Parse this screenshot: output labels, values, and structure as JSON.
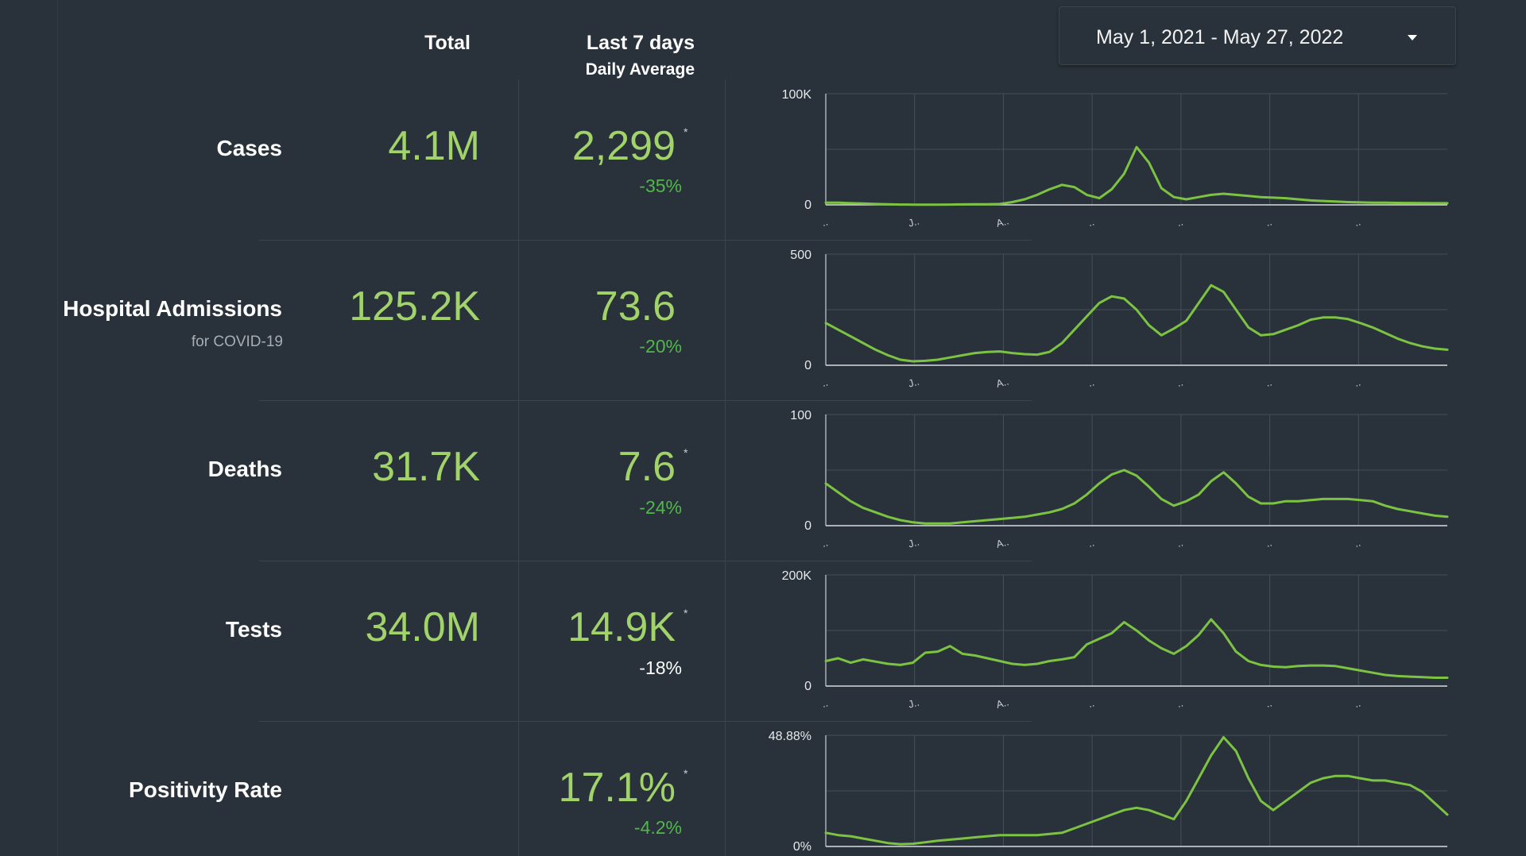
{
  "header": {
    "total": "Total",
    "last7": "Last 7 days",
    "daily_avg": "Daily Average"
  },
  "date_range": {
    "label": "May 1, 2021 - May 27, 2022",
    "icon": "caret-down-icon"
  },
  "colors": {
    "background": "#29323a",
    "value_green": "#a1d36a",
    "change_green": "#52b74a",
    "line_green": "#7cc243",
    "grid": "#454f58"
  },
  "rows": [
    {
      "label": "Cases",
      "sublabel": "",
      "total": "4.1M",
      "avg": "2,299",
      "asterisk": "*",
      "change": "-35%"
    },
    {
      "label": "Hospital Admissions",
      "sublabel": "for COVID-19",
      "total": "125.2K",
      "avg": "73.6",
      "asterisk": "",
      "change": "-20%"
    },
    {
      "label": "Deaths",
      "sublabel": "",
      "total": "31.7K",
      "avg": "7.6",
      "asterisk": "*",
      "change": "-24%"
    },
    {
      "label": "Tests",
      "sublabel": "",
      "total": "34.0M",
      "avg": "14.9K",
      "asterisk": "*",
      "change": "-18%"
    },
    {
      "label": "Positivity Rate",
      "sublabel": "",
      "total": "",
      "avg": "17.1%",
      "asterisk": "*",
      "change": "-4.2%"
    }
  ],
  "chart_data": [
    {
      "type": "line",
      "name": "Cases",
      "ylim": [
        0,
        100000
      ],
      "y_ticks": [
        "0",
        "100K"
      ],
      "x_tick_labels": [
        "..",
        "J..",
        "A..",
        "..",
        "..",
        "..",
        ".."
      ],
      "x": [
        0,
        2,
        4,
        6,
        8,
        10,
        12,
        14,
        16,
        18,
        20,
        22,
        24,
        26,
        28,
        30,
        32,
        34,
        36,
        38,
        40,
        42,
        44,
        46,
        48,
        50,
        52,
        54,
        56,
        58,
        60,
        62,
        64,
        66,
        68,
        70,
        72,
        74,
        76,
        78,
        80,
        82,
        84,
        86,
        88,
        90,
        92,
        94,
        96,
        98,
        100
      ],
      "values": [
        2000,
        2000,
        1500,
        1200,
        800,
        500,
        300,
        250,
        250,
        250,
        300,
        400,
        500,
        600,
        800,
        2500,
        5000,
        9000,
        14000,
        18000,
        16000,
        9000,
        6000,
        14000,
        28000,
        52000,
        38000,
        15000,
        7000,
        5000,
        7000,
        9000,
        10000,
        9000,
        8000,
        7000,
        6500,
        6000,
        5000,
        4000,
        3500,
        3000,
        2500,
        2200,
        2000,
        1900,
        1800,
        1700,
        1600,
        1500,
        1500
      ]
    },
    {
      "type": "line",
      "name": "Hospital Admissions",
      "ylim": [
        0,
        500
      ],
      "y_ticks": [
        "0",
        "500"
      ],
      "x_tick_labels": [
        "..",
        "J..",
        "A..",
        "..",
        "..",
        "..",
        ".."
      ],
      "x": [
        0,
        2,
        4,
        6,
        8,
        10,
        12,
        14,
        16,
        18,
        20,
        22,
        24,
        26,
        28,
        30,
        32,
        34,
        36,
        38,
        40,
        42,
        44,
        46,
        48,
        50,
        52,
        54,
        56,
        58,
        60,
        62,
        64,
        66,
        68,
        70,
        72,
        74,
        76,
        78,
        80,
        82,
        84,
        86,
        88,
        90,
        92,
        94,
        96,
        98,
        100
      ],
      "values": [
        190,
        160,
        130,
        100,
        70,
        45,
        25,
        18,
        20,
        25,
        35,
        45,
        55,
        60,
        62,
        55,
        50,
        48,
        60,
        100,
        160,
        220,
        280,
        310,
        300,
        250,
        180,
        135,
        165,
        200,
        280,
        360,
        330,
        250,
        170,
        135,
        140,
        160,
        180,
        205,
        215,
        215,
        208,
        190,
        170,
        145,
        120,
        100,
        85,
        75,
        70
      ]
    },
    {
      "type": "line",
      "name": "Deaths",
      "ylim": [
        0,
        100
      ],
      "y_ticks": [
        "0",
        "100"
      ],
      "x_tick_labels": [
        "..",
        "J..",
        "A..",
        "..",
        "..",
        "..",
        ".."
      ],
      "x": [
        0,
        2,
        4,
        6,
        8,
        10,
        12,
        14,
        16,
        18,
        20,
        22,
        24,
        26,
        28,
        30,
        32,
        34,
        36,
        38,
        40,
        42,
        44,
        46,
        48,
        50,
        52,
        54,
        56,
        58,
        60,
        62,
        64,
        66,
        68,
        70,
        72,
        74,
        76,
        78,
        80,
        82,
        84,
        86,
        88,
        90,
        92,
        94,
        96,
        98,
        100
      ],
      "values": [
        38,
        30,
        22,
        16,
        12,
        8,
        5,
        3,
        2,
        2,
        2,
        3,
        4,
        5,
        6,
        7,
        8,
        10,
        12,
        15,
        20,
        28,
        38,
        46,
        50,
        45,
        35,
        24,
        18,
        22,
        28,
        40,
        48,
        38,
        26,
        20,
        20,
        22,
        22,
        23,
        24,
        24,
        24,
        23,
        22,
        18,
        15,
        13,
        11,
        9,
        8
      ]
    },
    {
      "type": "line",
      "name": "Tests",
      "ylim": [
        0,
        200000
      ],
      "y_ticks": [
        "0",
        "200K"
      ],
      "x_tick_labels": [
        "..",
        "J..",
        "A..",
        "..",
        "..",
        "..",
        ".."
      ],
      "x": [
        0,
        2,
        4,
        6,
        8,
        10,
        12,
        14,
        16,
        18,
        20,
        22,
        24,
        26,
        28,
        30,
        32,
        34,
        36,
        38,
        40,
        42,
        44,
        46,
        48,
        50,
        52,
        54,
        56,
        58,
        60,
        62,
        64,
        66,
        68,
        70,
        72,
        74,
        76,
        78,
        80,
        82,
        84,
        86,
        88,
        90,
        92,
        94,
        96,
        98,
        100
      ],
      "values": [
        45000,
        50000,
        42000,
        48000,
        44000,
        40000,
        38000,
        42000,
        60000,
        62000,
        72000,
        58000,
        55000,
        50000,
        45000,
        40000,
        38000,
        40000,
        45000,
        48000,
        52000,
        75000,
        85000,
        95000,
        115000,
        100000,
        82000,
        68000,
        58000,
        72000,
        92000,
        120000,
        95000,
        62000,
        45000,
        38000,
        35000,
        34000,
        36000,
        37000,
        37000,
        36000,
        32000,
        28000,
        24000,
        20000,
        18000,
        17000,
        16000,
        15000,
        15000
      ]
    },
    {
      "type": "line",
      "name": "Positivity Rate",
      "ylim": [
        0,
        48.88
      ],
      "y_ticks": [
        "0%",
        "48.88%"
      ],
      "x": [
        0,
        2,
        4,
        6,
        8,
        10,
        12,
        14,
        16,
        18,
        20,
        22,
        24,
        26,
        28,
        30,
        32,
        34,
        36,
        38,
        40,
        42,
        44,
        46,
        48,
        50,
        52,
        54,
        56,
        58,
        60,
        62,
        64,
        66,
        68,
        70,
        72,
        74,
        76,
        78,
        80,
        82,
        84,
        86,
        88,
        90,
        92,
        94,
        96,
        98,
        100
      ],
      "values": [
        6,
        5,
        4.5,
        3.5,
        2.5,
        1.5,
        1,
        1.2,
        1.8,
        2.5,
        3,
        3.5,
        4,
        4.5,
        5,
        5,
        5,
        5,
        5.5,
        6,
        8,
        10,
        12,
        14,
        16,
        17,
        16,
        14,
        12,
        20,
        30,
        40,
        48,
        42,
        30,
        20,
        16,
        20,
        24,
        28,
        30,
        31,
        31,
        30,
        29,
        29,
        28,
        27,
        24,
        19,
        14
      ]
    }
  ]
}
